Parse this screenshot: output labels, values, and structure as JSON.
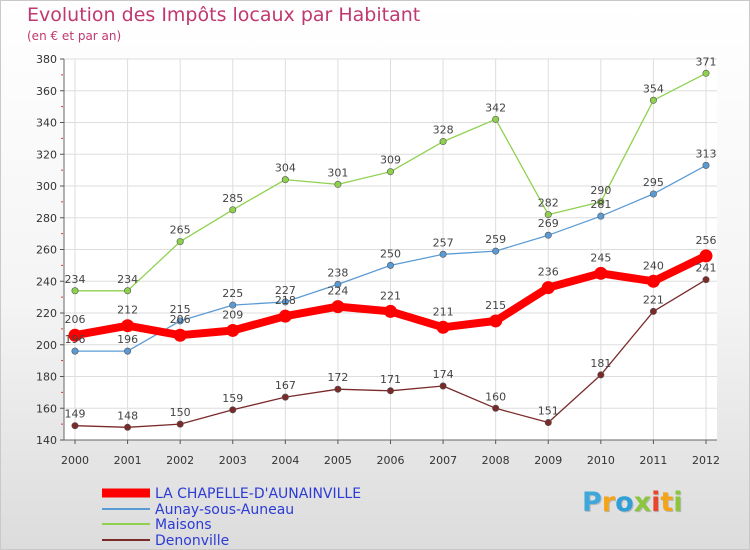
{
  "header": {
    "title": "Evolution des Impôts locaux par Habitant",
    "subtitle": "(en € et par an)"
  },
  "logo": {
    "text": "Proxiti",
    "letters": [
      "P",
      "r",
      "o",
      "x",
      "i",
      "t",
      "i"
    ],
    "colors": [
      "#3fa7dc",
      "#f4a418",
      "#2f9fd8",
      "#8cc63f",
      "#e8452c",
      "#f4a418",
      "#8cc63f"
    ]
  },
  "chart_data": {
    "type": "line",
    "title": "Evolution des Impôts locaux par Habitant",
    "subtitle": "(en € et par an)",
    "xlabel": "",
    "ylabel": "",
    "categories": [
      "2000",
      "2001",
      "2002",
      "2003",
      "2004",
      "2005",
      "2006",
      "2007",
      "2008",
      "2009",
      "2010",
      "2011",
      "2012"
    ],
    "ylim": [
      140,
      380
    ],
    "yticks": [
      140,
      160,
      180,
      200,
      220,
      240,
      260,
      280,
      300,
      320,
      340,
      360,
      380
    ],
    "grid": true,
    "legend_position": "bottom-left",
    "series": [
      {
        "name": "LA CHAPELLE-D'AUNAINVILLE",
        "color": "#ff0000",
        "values": [
          206,
          212,
          206,
          209,
          218,
          224,
          221,
          211,
          215,
          236,
          245,
          240,
          256
        ],
        "labels": [
          "206",
          "212",
          "206",
          "209",
          "218",
          "224",
          "221",
          "211",
          "215",
          "236",
          "245",
          "240",
          "256"
        ]
      },
      {
        "name": "Aunay-sous-Auneau",
        "color": "#5b9bd5",
        "values": [
          196,
          196,
          215,
          225,
          227,
          238,
          250,
          257,
          259,
          269,
          281,
          295,
          313
        ],
        "labels": [
          "196",
          "196",
          "215",
          "225",
          "227",
          "238",
          "250",
          "257",
          "259",
          "269",
          "281",
          "295",
          "313"
        ]
      },
      {
        "name": "Maisons",
        "color": "#8fd14f",
        "values": [
          234,
          234,
          265,
          285,
          304,
          301,
          309,
          328,
          342,
          282,
          290,
          354,
          371
        ],
        "labels": [
          "234",
          "234",
          "265",
          "285",
          "304",
          "301",
          "309",
          "328",
          "342",
          "282",
          "290",
          "354",
          "371"
        ]
      },
      {
        "name": "Denonville",
        "color": "#7b2a2a",
        "values": [
          149,
          148,
          150,
          159,
          167,
          172,
          171,
          174,
          160,
          151,
          181,
          221,
          241
        ],
        "labels": [
          "149",
          "148",
          "150",
          "159",
          "167",
          "172",
          "171",
          "174",
          "160",
          "151",
          "181",
          "221",
          "241"
        ]
      }
    ]
  }
}
